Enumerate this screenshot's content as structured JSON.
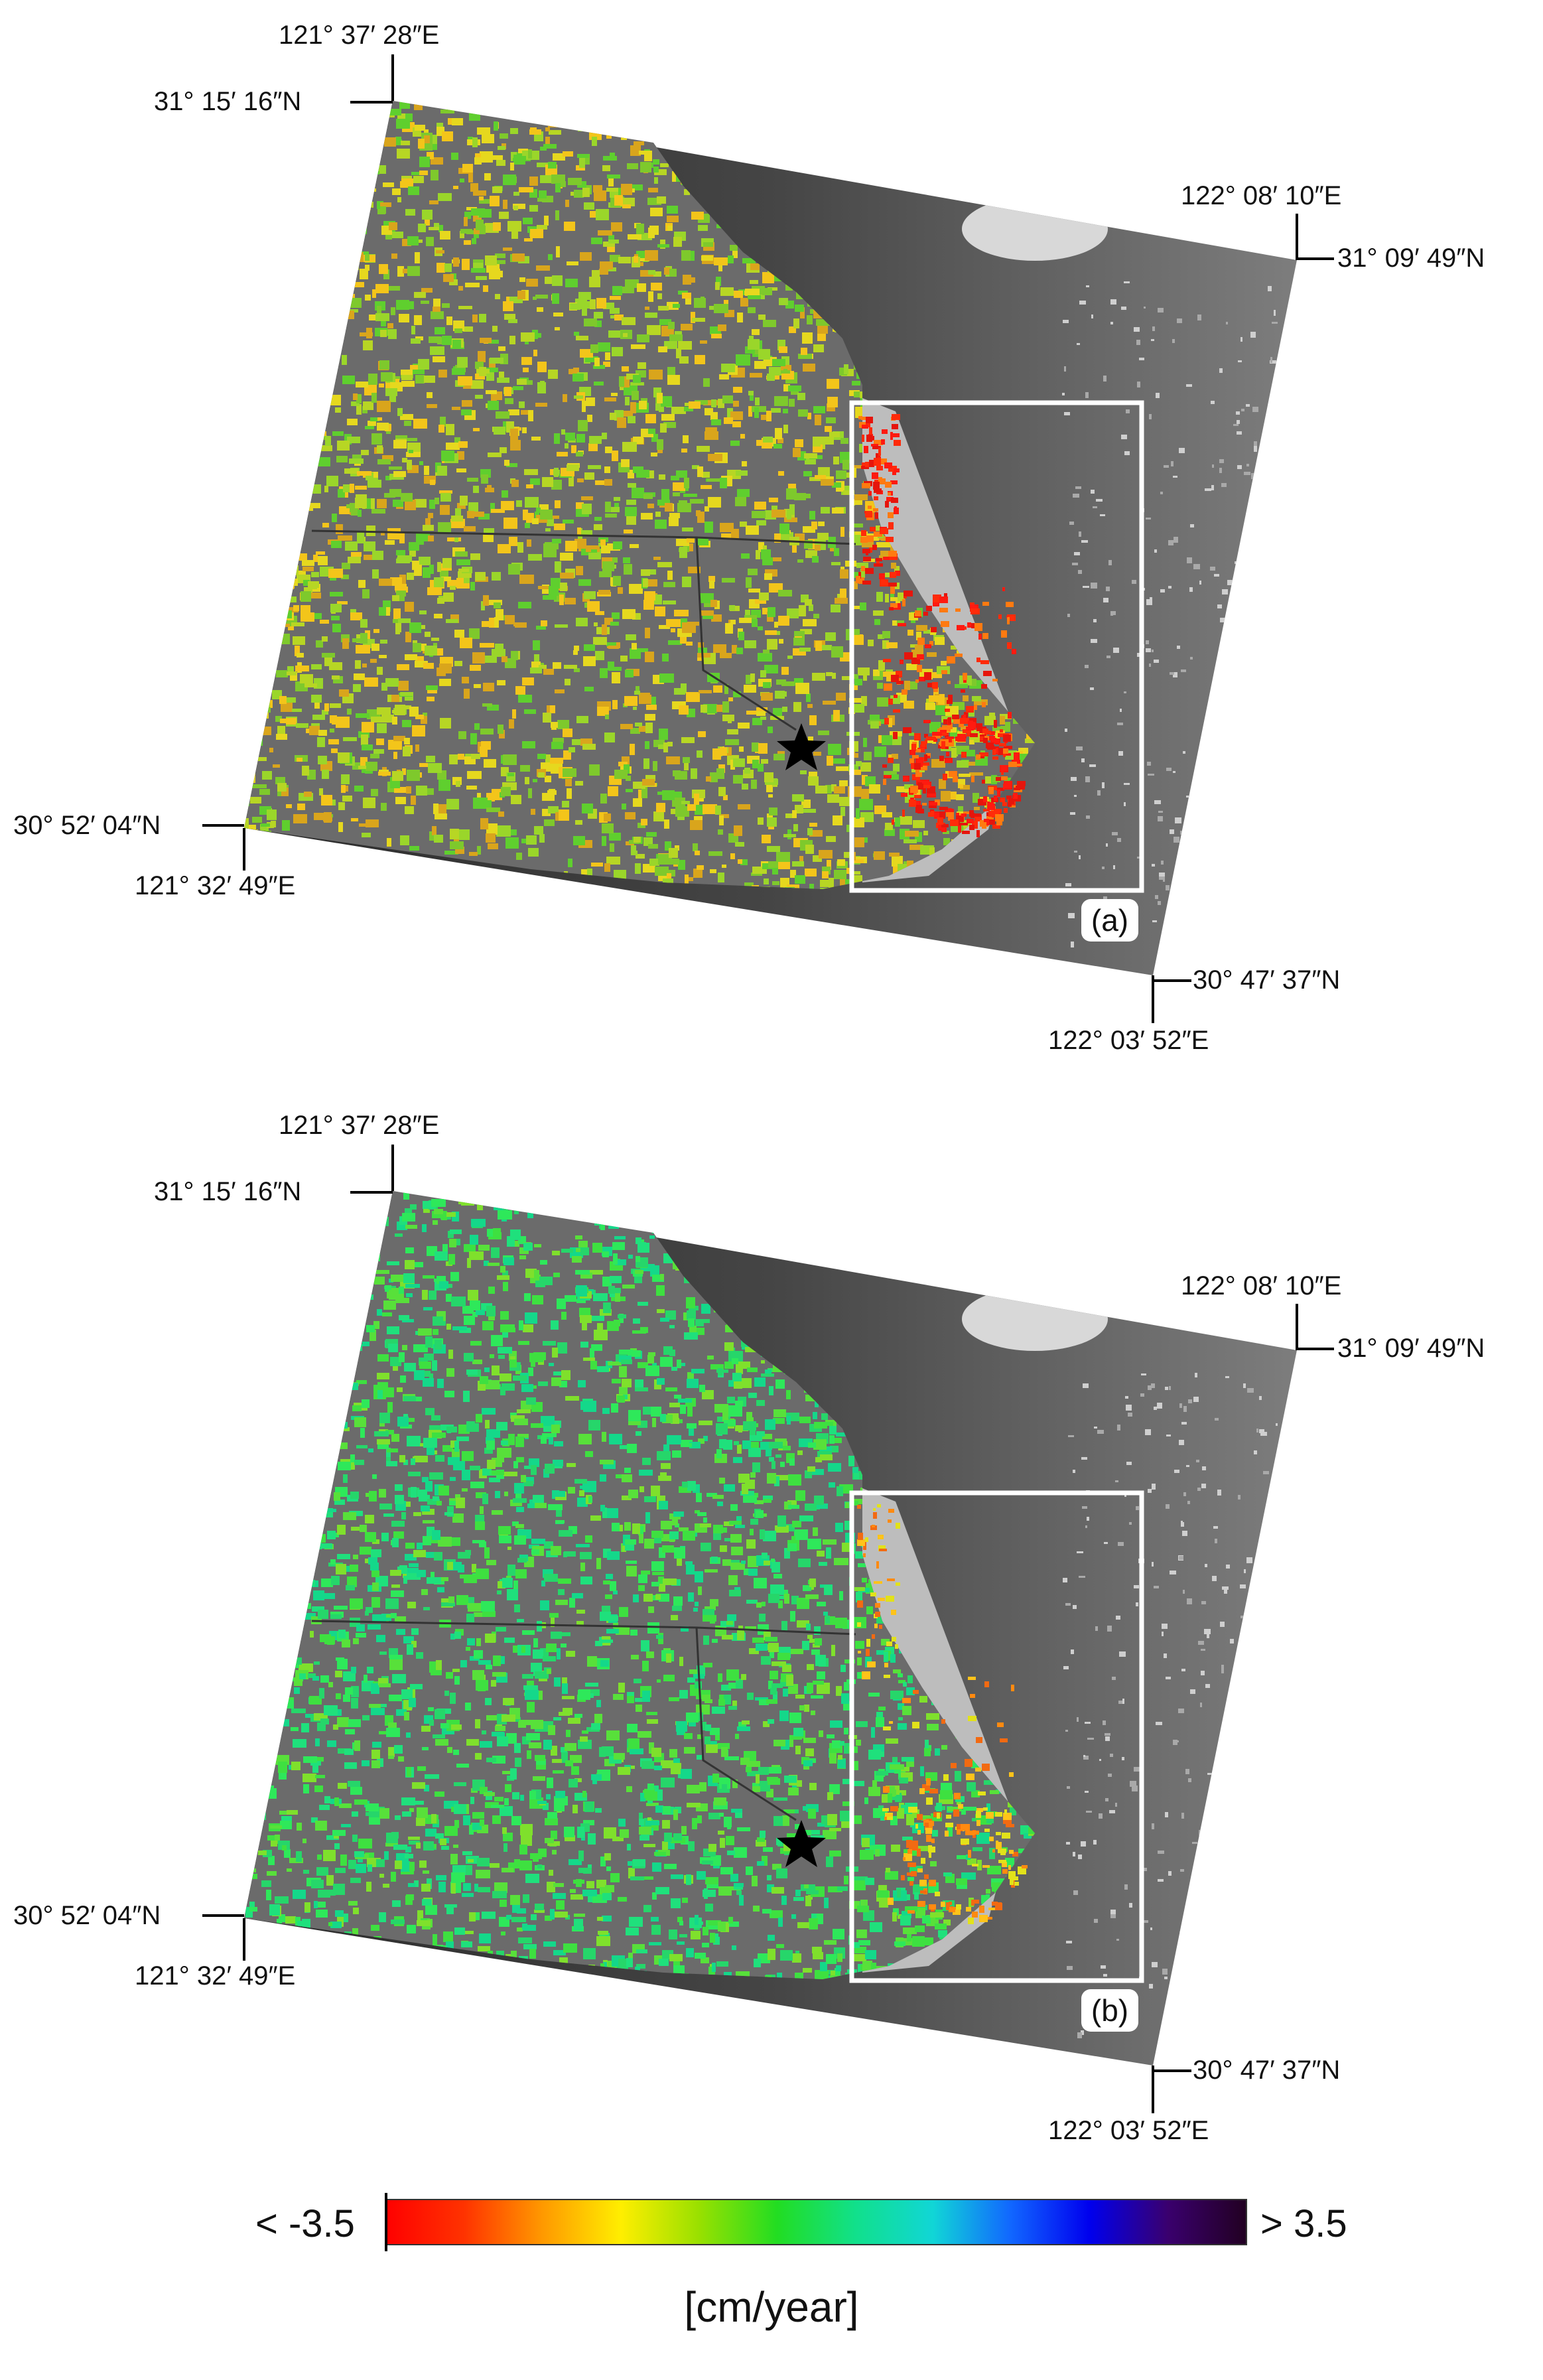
{
  "colors": {
    "water_dark": "#2e2e2e",
    "water_light": "#8a8a8a",
    "land_gray": "#6e6e6e",
    "box_outline": "#ffffff",
    "star": "#000000"
  },
  "panels": [
    {
      "id": "a",
      "tag": "(a)",
      "palette": [
        "#7ec92c",
        "#b7d624",
        "#e6d81e",
        "#f3c51a",
        "#9ad62a",
        "#5fcf2e",
        "#d9a51c"
      ],
      "coast_palette": [
        "#ff1a10",
        "#ff2b0a",
        "#ff7a10",
        "#e6150c"
      ],
      "labels": {
        "top_lon": "121° 37′ 28″E",
        "top_lat": "31° 15′ 16″N",
        "right_lon": "122° 08′ 10″E",
        "right_lat": "31° 09′ 49″N",
        "left_lat": "30° 52′ 04″N",
        "left_lon": "121° 32′ 49″E",
        "bottom_lat": "30° 47′ 37″N",
        "bottom_lon": "122° 03′ 52″E"
      }
    },
    {
      "id": "b",
      "tag": "(b)",
      "palette": [
        "#2ee85a",
        "#1fe07c",
        "#58e03a",
        "#14d88a",
        "#7fe02c",
        "#3ee040",
        "#26d66a"
      ],
      "coast_palette": [
        "#ff8a10",
        "#ffc31a",
        "#f26a12",
        "#e2e21a"
      ],
      "labels": {
        "top_lon": "121° 37′ 28″E",
        "top_lat": "31° 15′ 16″N",
        "right_lon": "122° 08′ 10″E",
        "right_lat": "31° 09′ 49″N",
        "left_lat": "30° 52′ 04″N",
        "left_lon": "121° 32′ 49″E",
        "bottom_lat": "30° 47′ 37″N",
        "bottom_lon": "122° 03′ 52″E"
      }
    }
  ],
  "colorbar": {
    "min_label": "< -3.5",
    "max_label": "> 3.5",
    "unit": "[cm/year]",
    "min": -3.5,
    "max": 3.5,
    "stops": [
      "#ff0000",
      "#ff3300",
      "#ff9900",
      "#ffee00",
      "#99e000",
      "#22dd22",
      "#11e08a",
      "#11d6d6",
      "#1166ff",
      "#0000ee",
      "#3a006e",
      "#220022"
    ]
  }
}
